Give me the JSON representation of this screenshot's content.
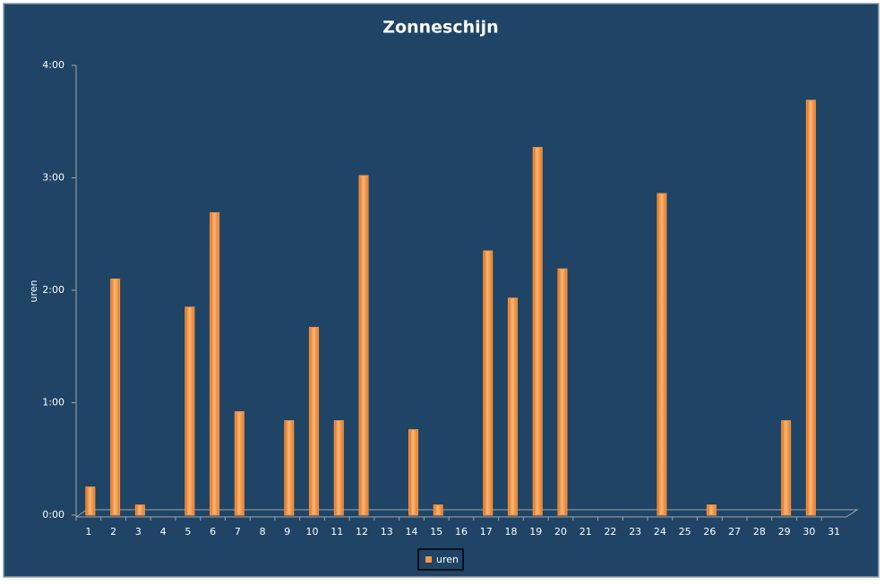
{
  "chart_data": {
    "type": "bar",
    "title": "Zonneschijn",
    "y_label": "uren",
    "categories": [
      "1",
      "2",
      "3",
      "4",
      "5",
      "6",
      "7",
      "8",
      "9",
      "10",
      "11",
      "12",
      "13",
      "14",
      "15",
      "16",
      "17",
      "18",
      "19",
      "20",
      "21",
      "22",
      "23",
      "24",
      "25",
      "26",
      "27",
      "28",
      "29",
      "30",
      "31"
    ],
    "series": [
      {
        "name": "uren",
        "color": "#f79646",
        "values": [
          0.25,
          2.1,
          0.09,
          0,
          1.85,
          2.69,
          0.92,
          0,
          0.84,
          1.67,
          0.84,
          3.02,
          0,
          0.76,
          0.09,
          0,
          2.35,
          1.93,
          3.27,
          2.19,
          0,
          0,
          0,
          2.86,
          0,
          0.09,
          0,
          0,
          0.84,
          3.69,
          0
        ]
      }
    ],
    "ylim": [
      0,
      4
    ],
    "yticks": [
      {
        "value": 0,
        "label": "0:00"
      },
      {
        "value": 1,
        "label": "1:00"
      },
      {
        "value": 2,
        "label": "2:00"
      },
      {
        "value": 3,
        "label": "3:00"
      },
      {
        "value": 4,
        "label": "4:00"
      }
    ],
    "legend": "bottom"
  }
}
